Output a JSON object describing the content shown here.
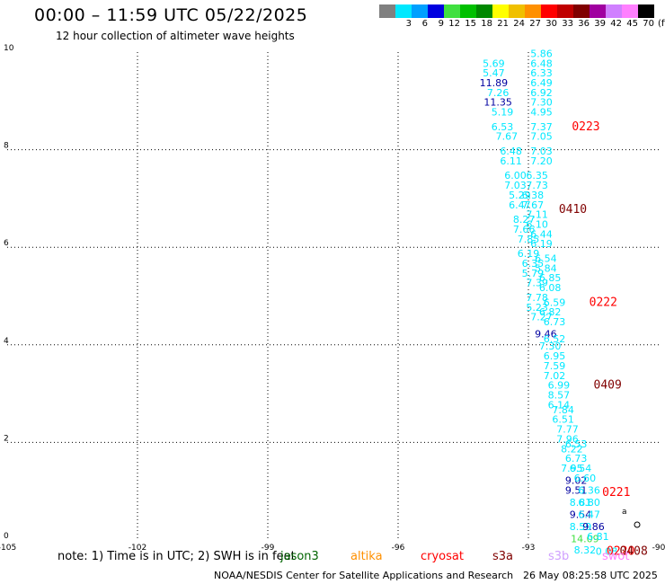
{
  "header": {
    "title": "00:00 – 11:59 UTC 05/22/2025",
    "subtitle": "12 hour collection of altimeter wave heights"
  },
  "colorbar": {
    "colors": [
      "#808080",
      "#00e8ff",
      "#00a0ff",
      "#0000e0",
      "#40e040",
      "#00c000",
      "#008800",
      "#ffff00",
      "#f0c000",
      "#ff9000",
      "#ff0000",
      "#c00000",
      "#800000",
      "#a000a0",
      "#d080ff",
      "#ff80ff",
      "#000000"
    ],
    "labels": [
      "",
      "3",
      "6",
      "9",
      "12",
      "15",
      "18",
      "21",
      "24",
      "27",
      "30",
      "33",
      "36",
      "39",
      "42",
      "45",
      "70",
      "(ft)"
    ]
  },
  "note": "note:  1) Time is in UTC; 2) SWH is in feet",
  "legend": [
    {
      "label": "jason3",
      "color": "#006400"
    },
    {
      "label": "altika",
      "color": "#ff9000"
    },
    {
      "label": "cryosat",
      "color": "#ff0000"
    },
    {
      "label": "s3a",
      "color": "#800000"
    },
    {
      "label": "s3b",
      "color": "#d0a0ff"
    },
    {
      "label": "swot",
      "color": "#ff80ff"
    }
  ],
  "footer": {
    "source": "NOAA/NESDIS Center for Satellite Applications and Research",
    "timestamp": "26 May 08:25:58 UTC 2025"
  },
  "chart_data": {
    "type": "scatter",
    "xlim": [
      -105,
      -90
    ],
    "ylim": [
      0,
      10
    ],
    "xticks": [
      "-105",
      "-102",
      "-99",
      "-96",
      "-93",
      "-90"
    ],
    "yticks": [
      "0",
      "2",
      "4",
      "6",
      "8",
      "10"
    ],
    "grid": true,
    "points": [
      {
        "x": -92.7,
        "y": 9.9,
        "t": "5.86",
        "c": "#00e8ff"
      },
      {
        "x": -93.8,
        "y": 9.7,
        "t": "5.69",
        "c": "#00e8ff"
      },
      {
        "x": -92.7,
        "y": 9.7,
        "t": "6.48",
        "c": "#00e8ff"
      },
      {
        "x": -93.8,
        "y": 9.5,
        "t": "5.47",
        "c": "#00e8ff"
      },
      {
        "x": -92.7,
        "y": 9.5,
        "t": "6.33",
        "c": "#00e8ff"
      },
      {
        "x": -93.8,
        "y": 9.3,
        "t": "11.89",
        "c": "#0000a0"
      },
      {
        "x": -92.7,
        "y": 9.3,
        "t": "6.49",
        "c": "#00e8ff"
      },
      {
        "x": -93.7,
        "y": 9.1,
        "t": "7.26",
        "c": "#00e8ff"
      },
      {
        "x": -92.7,
        "y": 9.1,
        "t": "6.92",
        "c": "#00e8ff"
      },
      {
        "x": -93.7,
        "y": 8.9,
        "t": "11.35",
        "c": "#0000a0"
      },
      {
        "x": -92.7,
        "y": 8.9,
        "t": "7.30",
        "c": "#00e8ff"
      },
      {
        "x": -93.6,
        "y": 8.7,
        "t": "5.19",
        "c": "#00e8ff"
      },
      {
        "x": -92.7,
        "y": 8.7,
        "t": "4.95",
        "c": "#00e8ff"
      },
      {
        "x": -93.6,
        "y": 8.4,
        "t": "6.53",
        "c": "#00e8ff"
      },
      {
        "x": -92.7,
        "y": 8.4,
        "t": "7.37",
        "c": "#00e8ff"
      },
      {
        "x": -93.5,
        "y": 8.2,
        "t": "7.67",
        "c": "#00e8ff"
      },
      {
        "x": -92.7,
        "y": 8.2,
        "t": "7.05",
        "c": "#00e8ff"
      },
      {
        "x": -93.4,
        "y": 7.9,
        "t": "6.48",
        "c": "#00e8ff"
      },
      {
        "x": -92.7,
        "y": 7.9,
        "t": "7.03",
        "c": "#00e8ff"
      },
      {
        "x": -93.4,
        "y": 7.7,
        "t": "6.11",
        "c": "#00e8ff"
      },
      {
        "x": -92.7,
        "y": 7.7,
        "t": "7.20",
        "c": "#00e8ff"
      },
      {
        "x": -93.3,
        "y": 7.4,
        "t": "6.00",
        "c": "#00e8ff"
      },
      {
        "x": -92.8,
        "y": 7.4,
        "t": "6.35",
        "c": "#00e8ff"
      },
      {
        "x": -93.3,
        "y": 7.2,
        "t": "7.03",
        "c": "#00e8ff"
      },
      {
        "x": -92.8,
        "y": 7.2,
        "t": "7.73",
        "c": "#00e8ff"
      },
      {
        "x": -93.2,
        "y": 7.0,
        "t": "5.29",
        "c": "#00e8ff"
      },
      {
        "x": -92.9,
        "y": 7.0,
        "t": "6.38",
        "c": "#00e8ff"
      },
      {
        "x": -93.2,
        "y": 6.8,
        "t": "6.47",
        "c": "#00e8ff"
      },
      {
        "x": -92.9,
        "y": 6.8,
        "t": "7.67",
        "c": "#00e8ff"
      },
      {
        "x": -93.1,
        "y": 6.5,
        "t": "8.27",
        "c": "#00e8ff"
      },
      {
        "x": -92.8,
        "y": 6.6,
        "t": "7.11",
        "c": "#00e8ff"
      },
      {
        "x": -93.1,
        "y": 6.3,
        "t": "7.66",
        "c": "#00e8ff"
      },
      {
        "x": -92.8,
        "y": 6.4,
        "t": "6.10",
        "c": "#00e8ff"
      },
      {
        "x": -93.0,
        "y": 6.1,
        "t": "7.85",
        "c": "#00e8ff"
      },
      {
        "x": -92.7,
        "y": 6.2,
        "t": "6.44",
        "c": "#00e8ff"
      },
      {
        "x": -93.0,
        "y": 5.8,
        "t": "6.19",
        "c": "#00e8ff"
      },
      {
        "x": -92.7,
        "y": 6.0,
        "t": "6.19",
        "c": "#00e8ff"
      },
      {
        "x": -92.9,
        "y": 5.6,
        "t": "6.35",
        "c": "#00e8ff"
      },
      {
        "x": -92.6,
        "y": 5.7,
        "t": "6.54",
        "c": "#00e8ff"
      },
      {
        "x": -92.9,
        "y": 5.4,
        "t": "5.79",
        "c": "#00e8ff"
      },
      {
        "x": -92.6,
        "y": 5.5,
        "t": "5.84",
        "c": "#00e8ff"
      },
      {
        "x": -92.8,
        "y": 5.2,
        "t": "7.39",
        "c": "#00e8ff"
      },
      {
        "x": -92.5,
        "y": 5.3,
        "t": "6.85",
        "c": "#00e8ff"
      },
      {
        "x": -92.5,
        "y": 5.1,
        "t": "6.08",
        "c": "#00e8ff"
      },
      {
        "x": -92.8,
        "y": 4.9,
        "t": "7.78",
        "c": "#00e8ff"
      },
      {
        "x": -92.4,
        "y": 4.8,
        "t": "6.59",
        "c": "#00e8ff"
      },
      {
        "x": -92.8,
        "y": 4.7,
        "t": "5.23",
        "c": "#00e8ff"
      },
      {
        "x": -92.5,
        "y": 4.6,
        "t": "6.82",
        "c": "#00e8ff"
      },
      {
        "x": -92.7,
        "y": 4.5,
        "t": "7.27",
        "c": "#00e8ff"
      },
      {
        "x": -92.4,
        "y": 4.4,
        "t": "6.73",
        "c": "#00e8ff"
      },
      {
        "x": -92.6,
        "y": 4.15,
        "t": "9.46",
        "c": "#0000a0"
      },
      {
        "x": -92.4,
        "y": 4.05,
        "t": "6.52",
        "c": "#00e8ff"
      },
      {
        "x": -92.5,
        "y": 3.9,
        "t": "7.30",
        "c": "#00e8ff"
      },
      {
        "x": -92.4,
        "y": 3.7,
        "t": "6.95",
        "c": "#00e8ff"
      },
      {
        "x": -92.4,
        "y": 3.5,
        "t": "7.59",
        "c": "#00e8ff"
      },
      {
        "x": -92.4,
        "y": 3.3,
        "t": "7.02",
        "c": "#00e8ff"
      },
      {
        "x": -92.3,
        "y": 3.1,
        "t": "6.99",
        "c": "#00e8ff"
      },
      {
        "x": -92.3,
        "y": 2.9,
        "t": "8.57",
        "c": "#00e8ff"
      },
      {
        "x": -92.3,
        "y": 2.7,
        "t": "6.14",
        "c": "#00e8ff"
      },
      {
        "x": -92.2,
        "y": 2.6,
        "t": "7.84",
        "c": "#00e8ff"
      },
      {
        "x": -92.2,
        "y": 2.4,
        "t": "6.51",
        "c": "#00e8ff"
      },
      {
        "x": -92.1,
        "y": 2.2,
        "t": "7.77",
        "c": "#00e8ff"
      },
      {
        "x": -92.1,
        "y": 2.0,
        "t": "7.96",
        "c": "#00e8ff"
      },
      {
        "x": -91.9,
        "y": 1.9,
        "t": "6.53",
        "c": "#00e8ff"
      },
      {
        "x": -92.0,
        "y": 1.8,
        "t": "8.22",
        "c": "#00e8ff"
      },
      {
        "x": -91.9,
        "y": 1.6,
        "t": "6.73",
        "c": "#00e8ff"
      },
      {
        "x": -92.0,
        "y": 1.4,
        "t": "7.95",
        "c": "#00e8ff"
      },
      {
        "x": -91.8,
        "y": 1.4,
        "t": "6.54",
        "c": "#00e8ff"
      },
      {
        "x": -91.9,
        "y": 1.15,
        "t": "9.02",
        "c": "#0000a0"
      },
      {
        "x": -91.7,
        "y": 1.2,
        "t": "6.60",
        "c": "#00e8ff"
      },
      {
        "x": -91.9,
        "y": 0.95,
        "t": "9.51",
        "c": "#0000a0"
      },
      {
        "x": -91.6,
        "y": 0.95,
        "t": "6.36",
        "c": "#00e8ff"
      },
      {
        "x": -91.8,
        "y": 0.7,
        "t": "8.81",
        "c": "#00e8ff"
      },
      {
        "x": -91.6,
        "y": 0.7,
        "t": "6.80",
        "c": "#00e8ff"
      },
      {
        "x": -91.8,
        "y": 0.45,
        "t": "9.54",
        "c": "#0000a0"
      },
      {
        "x": -91.6,
        "y": 0.45,
        "t": "6.47",
        "c": "#00e8ff"
      },
      {
        "x": -91.8,
        "y": 0.2,
        "t": "8.59",
        "c": "#00e8ff"
      },
      {
        "x": -91.5,
        "y": 0.2,
        "t": "9.86",
        "c": "#0000a0"
      },
      {
        "x": -91.7,
        "y": -0.05,
        "t": "14.09",
        "c": "#40e040"
      },
      {
        "x": -91.4,
        "y": 0.0,
        "t": "6.81",
        "c": "#00e8ff"
      },
      {
        "x": -91.7,
        "y": -0.28,
        "t": "8.32",
        "c": "#00e8ff"
      },
      {
        "x": -91.2,
        "y": -0.3,
        "t": "0.08",
        "c": "#00e8ff"
      }
    ],
    "annotations": [
      {
        "x": -92.0,
        "y": 8.4,
        "t": "0223",
        "c": "#ff0000"
      },
      {
        "x": -92.3,
        "y": 6.7,
        "t": "0410",
        "c": "#800000"
      },
      {
        "x": -91.6,
        "y": 4.8,
        "t": "0222",
        "c": "#ff0000"
      },
      {
        "x": -91.5,
        "y": 3.1,
        "t": "0409",
        "c": "#800000"
      },
      {
        "x": -91.3,
        "y": 0.9,
        "t": "0221",
        "c": "#ff0000"
      },
      {
        "x": -91.2,
        "y": -0.3,
        "t": "0220",
        "c": "#ff0000"
      },
      {
        "x": -90.9,
        "y": -0.3,
        "t": "0408",
        "c": "#800000"
      }
    ]
  }
}
